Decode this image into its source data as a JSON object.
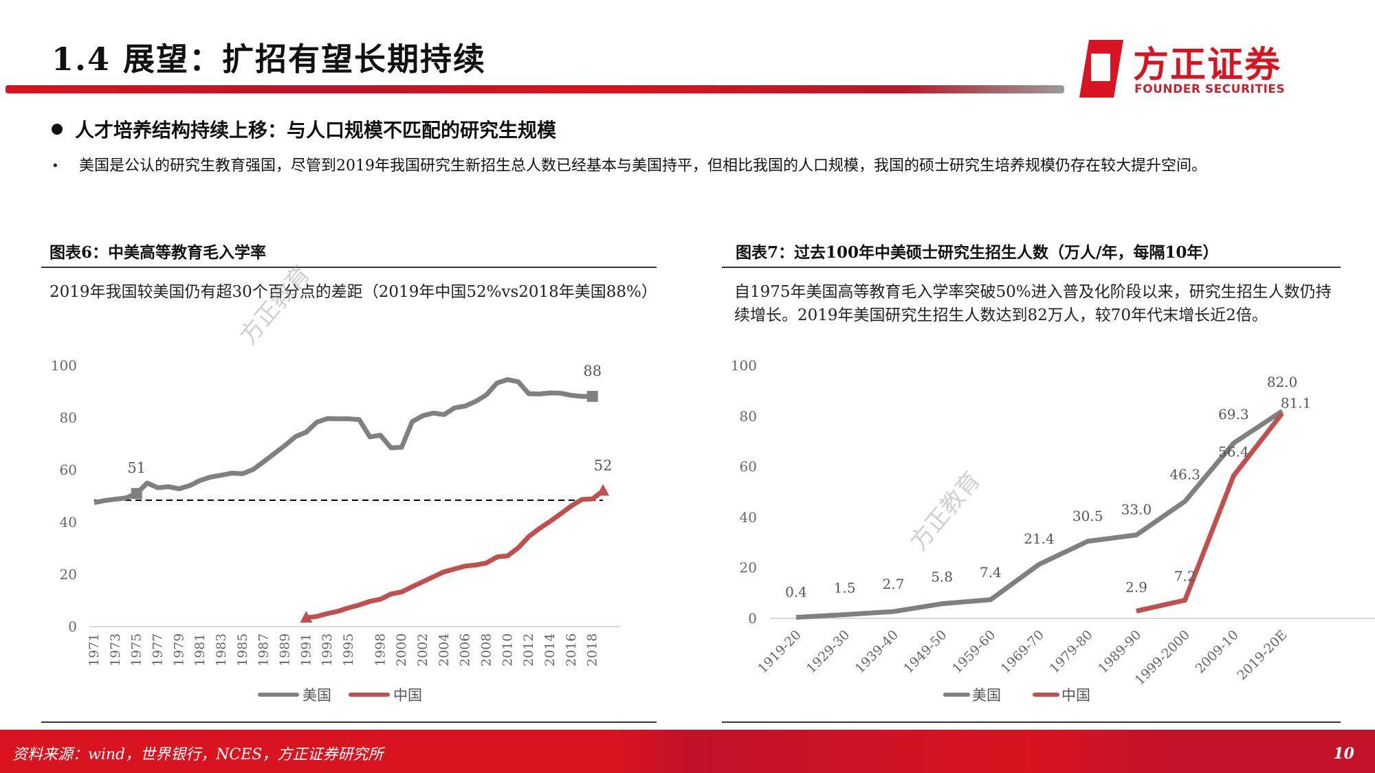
{
  "header": {
    "title": "1.4 展望：扩招有望长期持续",
    "logo_cn": "方正证券",
    "logo_en": "FOUNDER SECURITIES"
  },
  "section": {
    "bullet_heading": "人才培养结构持续上移：与人口规模不匹配的研究生规模",
    "paragraph": "美国是公认的研究生教育强国，尽管到2019年我国研究生新招生总人数已经基本与美国持平，但相比我国的人口规模，我国的硕士研究生培养规模仍存在较大提升空间。"
  },
  "figure6": {
    "title": "图表6：中美高等教育毛入学率",
    "description": "2019年我国较美国仍有超30个百分点的差距（2019年中国52%vs2018年美国88%）",
    "watermark": "方正教育"
  },
  "figure7": {
    "title": "图表7：过去100年中美硕士研究生招生人数（万人/年，每隔10年）",
    "description": "自1975年美国高等教育毛入学率突破50%进入普及化阶段以来，研究生招生人数仍持续增长。2019年美国研究生招生人数达到82万人，较70年代末增长近2倍。",
    "watermark": "方正教育"
  },
  "footer": {
    "source": "资料来源：wind，世界银行，NCES，方正证券研究所",
    "page_number": "10"
  },
  "colors": {
    "brand_red": "#d7141f",
    "us_series": "#808080",
    "china_series": "#c0504d"
  },
  "chart_data": [
    {
      "type": "line",
      "title": "中美高等教育毛入学率",
      "xlabel": "",
      "ylabel": "",
      "ylim": [
        0,
        100
      ],
      "yticks": [
        0,
        20,
        40,
        60,
        80,
        100
      ],
      "x_tick_labels": [
        "1971",
        "1973",
        "1975",
        "1977",
        "1979",
        "1981",
        "1983",
        "1985",
        "1987",
        "1989",
        "1991",
        "1993",
        "1995",
        "1998",
        "2000",
        "2002",
        "2004",
        "2006",
        "2008",
        "2010",
        "2012",
        "2014",
        "2016",
        "2018"
      ],
      "x": [
        "1971",
        "1972",
        "1973",
        "1974",
        "1975",
        "1976",
        "1977",
        "1978",
        "1979",
        "1980",
        "1981",
        "1982",
        "1983",
        "1984",
        "1985",
        "1986",
        "1987",
        "1988",
        "1989",
        "1990",
        "1991",
        "1992",
        "1993",
        "1994",
        "1995",
        "1996",
        "1997",
        "1998",
        "1999",
        "2000",
        "2001",
        "2002",
        "2003",
        "2004",
        "2005",
        "2006",
        "2007",
        "2008",
        "2009",
        "2010",
        "2011",
        "2012",
        "2013",
        "2014",
        "2015",
        "2016",
        "2017",
        "2018",
        "2019"
      ],
      "series": [
        {
          "name": "美国",
          "color": "#808080",
          "values": [
            47.5,
            48.3,
            48.8,
            49.3,
            51,
            55,
            53.2,
            53.6,
            52.8,
            54,
            56,
            57.3,
            58,
            58.8,
            58.6,
            60.2,
            63.2,
            66.3,
            69.4,
            72.8,
            74.5,
            78.3,
            79.7,
            79.6,
            79.6,
            79.3,
            72.7,
            73.3,
            68.5,
            68.7,
            78.5,
            80.8,
            81.8,
            81.2,
            83.8,
            84.5,
            86.3,
            88.8,
            93.3,
            94.6,
            93.8,
            89.2,
            89.1,
            89.5,
            89.4,
            88.6,
            88.2,
            88.2,
            null
          ],
          "end_marker": "square",
          "annotations": [
            {
              "x": "1975",
              "label": "51"
            },
            {
              "x": "2018",
              "label": "88"
            }
          ]
        },
        {
          "name": "中国",
          "color": "#c0504d",
          "values": [
            null,
            null,
            null,
            null,
            null,
            null,
            null,
            null,
            null,
            null,
            null,
            null,
            null,
            null,
            null,
            null,
            null,
            null,
            null,
            null,
            3.4,
            3.9,
            5,
            5.9,
            7.2,
            8.3,
            9.7,
            10.5,
            12.5,
            13.3,
            15.3,
            17.2,
            19.1,
            21,
            22.1,
            23.2,
            23.6,
            24.4,
            26.7,
            27.1,
            30.2,
            34.5,
            37.6,
            40.3,
            43.2,
            46.2,
            48.7,
            48.9,
            52
          ],
          "end_marker": "triangle",
          "annotations": [
            {
              "x": "2019",
              "label": "52"
            }
          ]
        }
      ],
      "reference_line": {
        "y": 48.5,
        "style": "dashed",
        "color": "#000000"
      },
      "legend": {
        "position": "bottom",
        "entries": [
          "美国",
          "中国"
        ]
      }
    },
    {
      "type": "line",
      "title": "过去100年中美硕士研究生招生人数（万人/年，每隔10年）",
      "xlabel": "",
      "ylabel": "",
      "ylim": [
        0,
        100
      ],
      "yticks": [
        0,
        20,
        40,
        60,
        80,
        100
      ],
      "categories": [
        "1919-20",
        "1929-30",
        "1939-40",
        "1949-50",
        "1959-60",
        "1969-70",
        "1979-80",
        "1989-90",
        "1999-2000",
        "2009-10",
        "2019-20E"
      ],
      "series": [
        {
          "name": "美国",
          "color": "#808080",
          "values": [
            0.4,
            1.5,
            2.7,
            5.8,
            7.4,
            21.4,
            30.5,
            33.0,
            46.3,
            69.3,
            82.0
          ],
          "labels": [
            "0.4",
            "1.5",
            "2.7",
            "5.8",
            "7.4",
            "21.4",
            "30.5",
            "33.0",
            "46.3",
            "69.3",
            "82.0"
          ]
        },
        {
          "name": "中国",
          "color": "#c0504d",
          "values": [
            null,
            null,
            null,
            null,
            null,
            null,
            null,
            2.9,
            7.2,
            56.4,
            81.1
          ],
          "labels": [
            "",
            "",
            "",
            "",
            "",
            "",
            "",
            "2.9",
            "7.2",
            "56.4",
            "81.1"
          ]
        }
      ],
      "legend": {
        "position": "bottom",
        "entries": [
          "美国",
          "中国"
        ]
      }
    }
  ]
}
